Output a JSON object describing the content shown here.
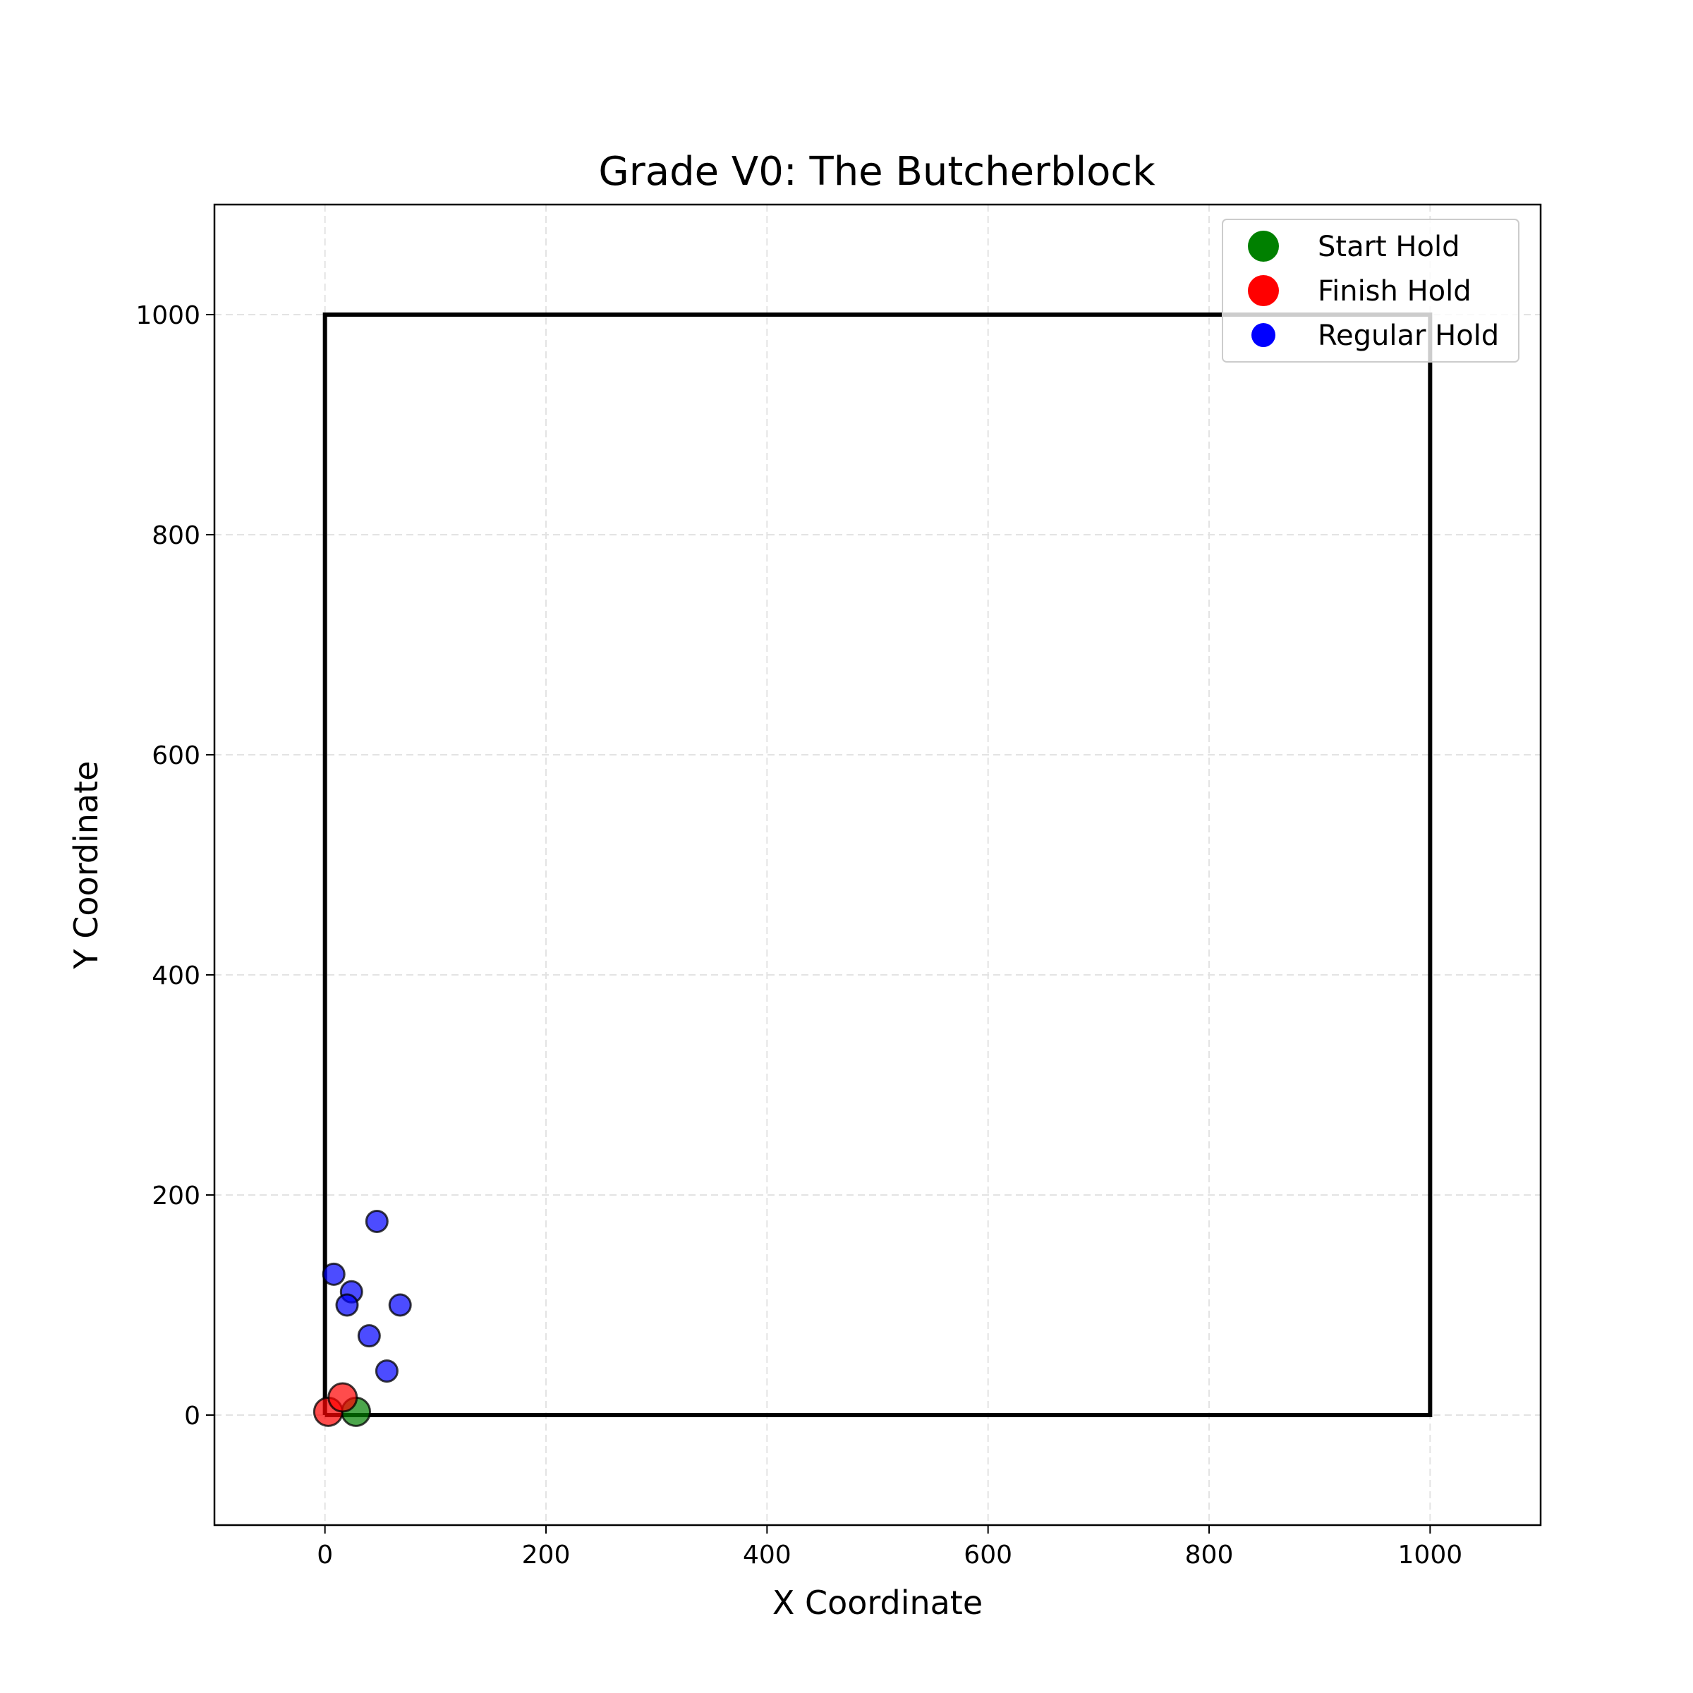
{
  "chart_data": {
    "type": "scatter",
    "title": "Grade V0: The Butcherblock",
    "xlabel": "X Coordinate",
    "ylabel": "Y Coordinate",
    "xlim": [
      -100,
      1100
    ],
    "ylim": [
      -100,
      1100
    ],
    "xticks": [
      0,
      200,
      400,
      600,
      800,
      1000
    ],
    "yticks": [
      0,
      200,
      400,
      600,
      800,
      1000
    ],
    "xtick_labels": [
      "0",
      "200",
      "400",
      "600",
      "800",
      "1000"
    ],
    "ytick_labels": [
      "0",
      "200",
      "400",
      "600",
      "800",
      "1000"
    ],
    "grid": true,
    "legend_position": "top-right",
    "wall_outline": {
      "x": [
        0,
        1000,
        1000,
        0,
        0
      ],
      "y": [
        0,
        0,
        1000,
        1000,
        0
      ]
    },
    "series": [
      {
        "name": "Start Hold",
        "color": "#008000",
        "points": [
          [
            28,
            3
          ]
        ]
      },
      {
        "name": "Finish Hold",
        "color": "#ff0000",
        "points": [
          [
            3,
            3
          ],
          [
            16,
            16
          ]
        ]
      },
      {
        "name": "Regular Hold",
        "color": "#0000ff",
        "points": [
          [
            47,
            176
          ],
          [
            8,
            128
          ],
          [
            24,
            112
          ],
          [
            20,
            100
          ],
          [
            68,
            100
          ],
          [
            40,
            72
          ],
          [
            56,
            40
          ]
        ]
      }
    ]
  }
}
